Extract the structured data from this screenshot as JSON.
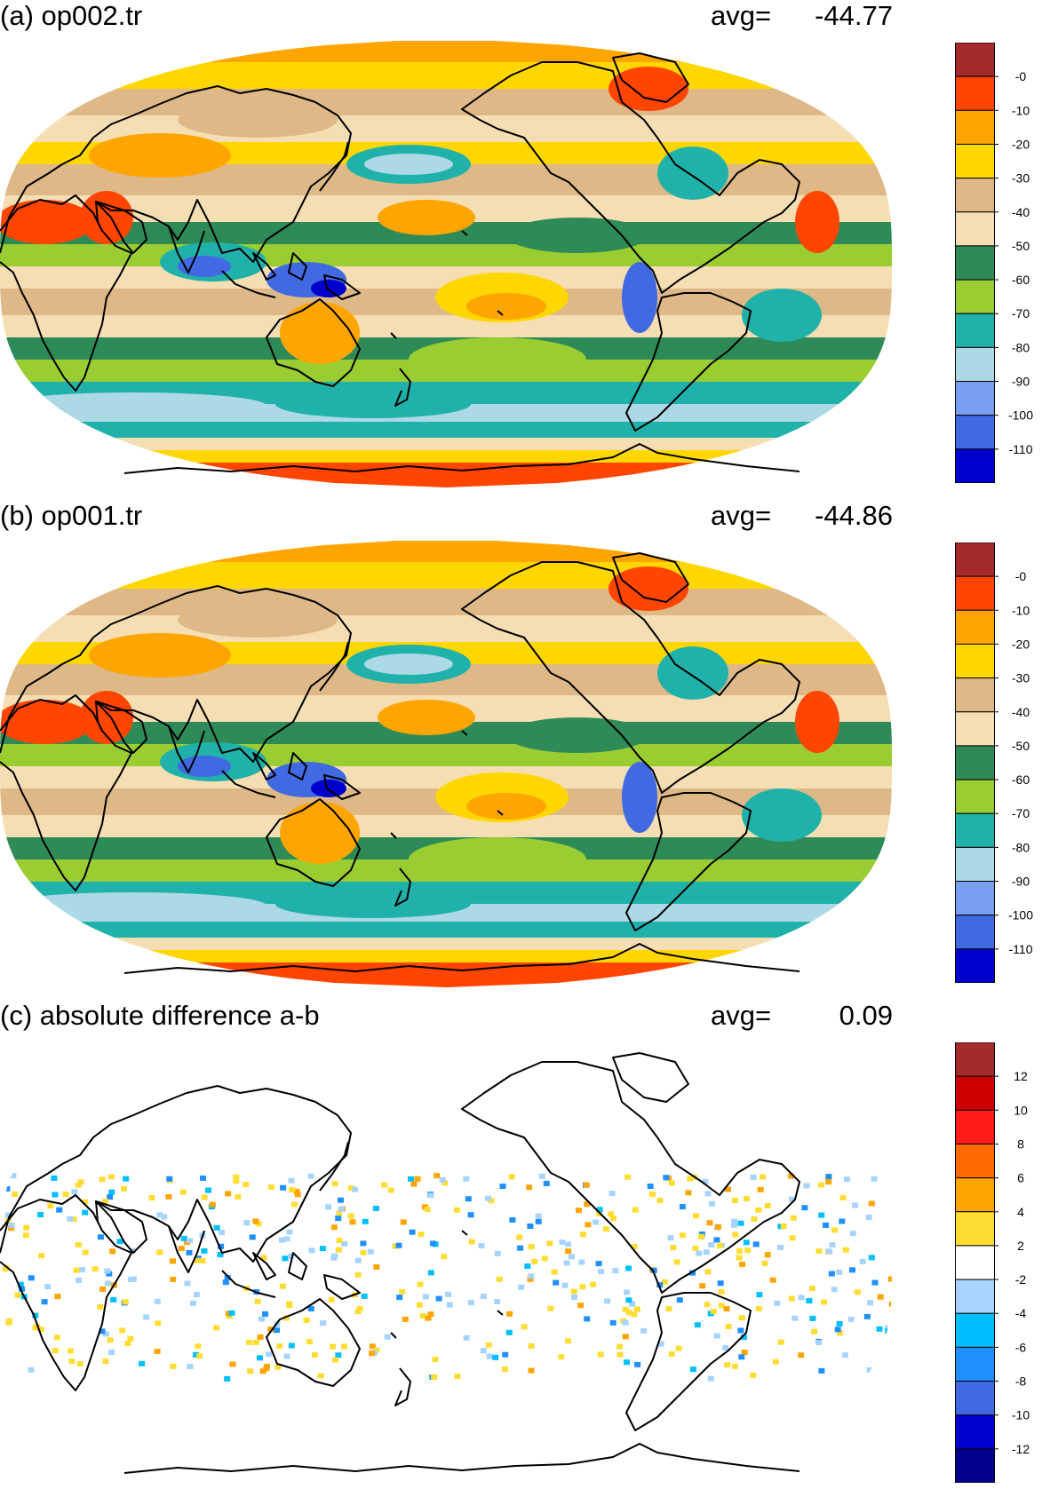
{
  "panels": [
    {
      "title": "(a) op002.tr",
      "avg_label": "avg=",
      "avg_value": "-44.77",
      "colorbar": {
        "labels": [
          "-0",
          "-10",
          "-20",
          "-30",
          "-40",
          "-50",
          "-60",
          "-70",
          "-80",
          "-90",
          "-100",
          "-110"
        ],
        "colors": [
          "#a52a2a",
          "#ff4500",
          "#ffa500",
          "#ffd700",
          "#deb887",
          "#f5deb3",
          "#2e8b57",
          "#9acd32",
          "#20b2aa",
          "#add8e6",
          "#7b9ff0",
          "#4169e1",
          "#0000cd"
        ]
      }
    },
    {
      "title": "(b) op001.tr",
      "avg_label": "avg=",
      "avg_value": "-44.86",
      "colorbar": {
        "labels": [
          "-0",
          "-10",
          "-20",
          "-30",
          "-40",
          "-50",
          "-60",
          "-70",
          "-80",
          "-90",
          "-100",
          "-110"
        ],
        "colors": [
          "#a52a2a",
          "#ff4500",
          "#ffa500",
          "#ffd700",
          "#deb887",
          "#f5deb3",
          "#2e8b57",
          "#9acd32",
          "#20b2aa",
          "#add8e6",
          "#7b9ff0",
          "#4169e1",
          "#0000cd"
        ]
      }
    },
    {
      "title": "(c) absolute difference a-b",
      "avg_label": "avg=",
      "avg_value": "0.09",
      "colorbar": {
        "labels": [
          "12",
          "10",
          "8",
          "6",
          "4",
          "2",
          "-2",
          "-4",
          "-6",
          "-8",
          "-10",
          "-12"
        ],
        "colors": [
          "#a52a2a",
          "#cd0000",
          "#ff1a1a",
          "#ff6a00",
          "#ffa500",
          "#ffdd33",
          "#ffffff",
          "#a6d4ff",
          "#00bfff",
          "#1e90ff",
          "#4169e1",
          "#0000cd",
          "#00008b"
        ]
      }
    }
  ]
}
